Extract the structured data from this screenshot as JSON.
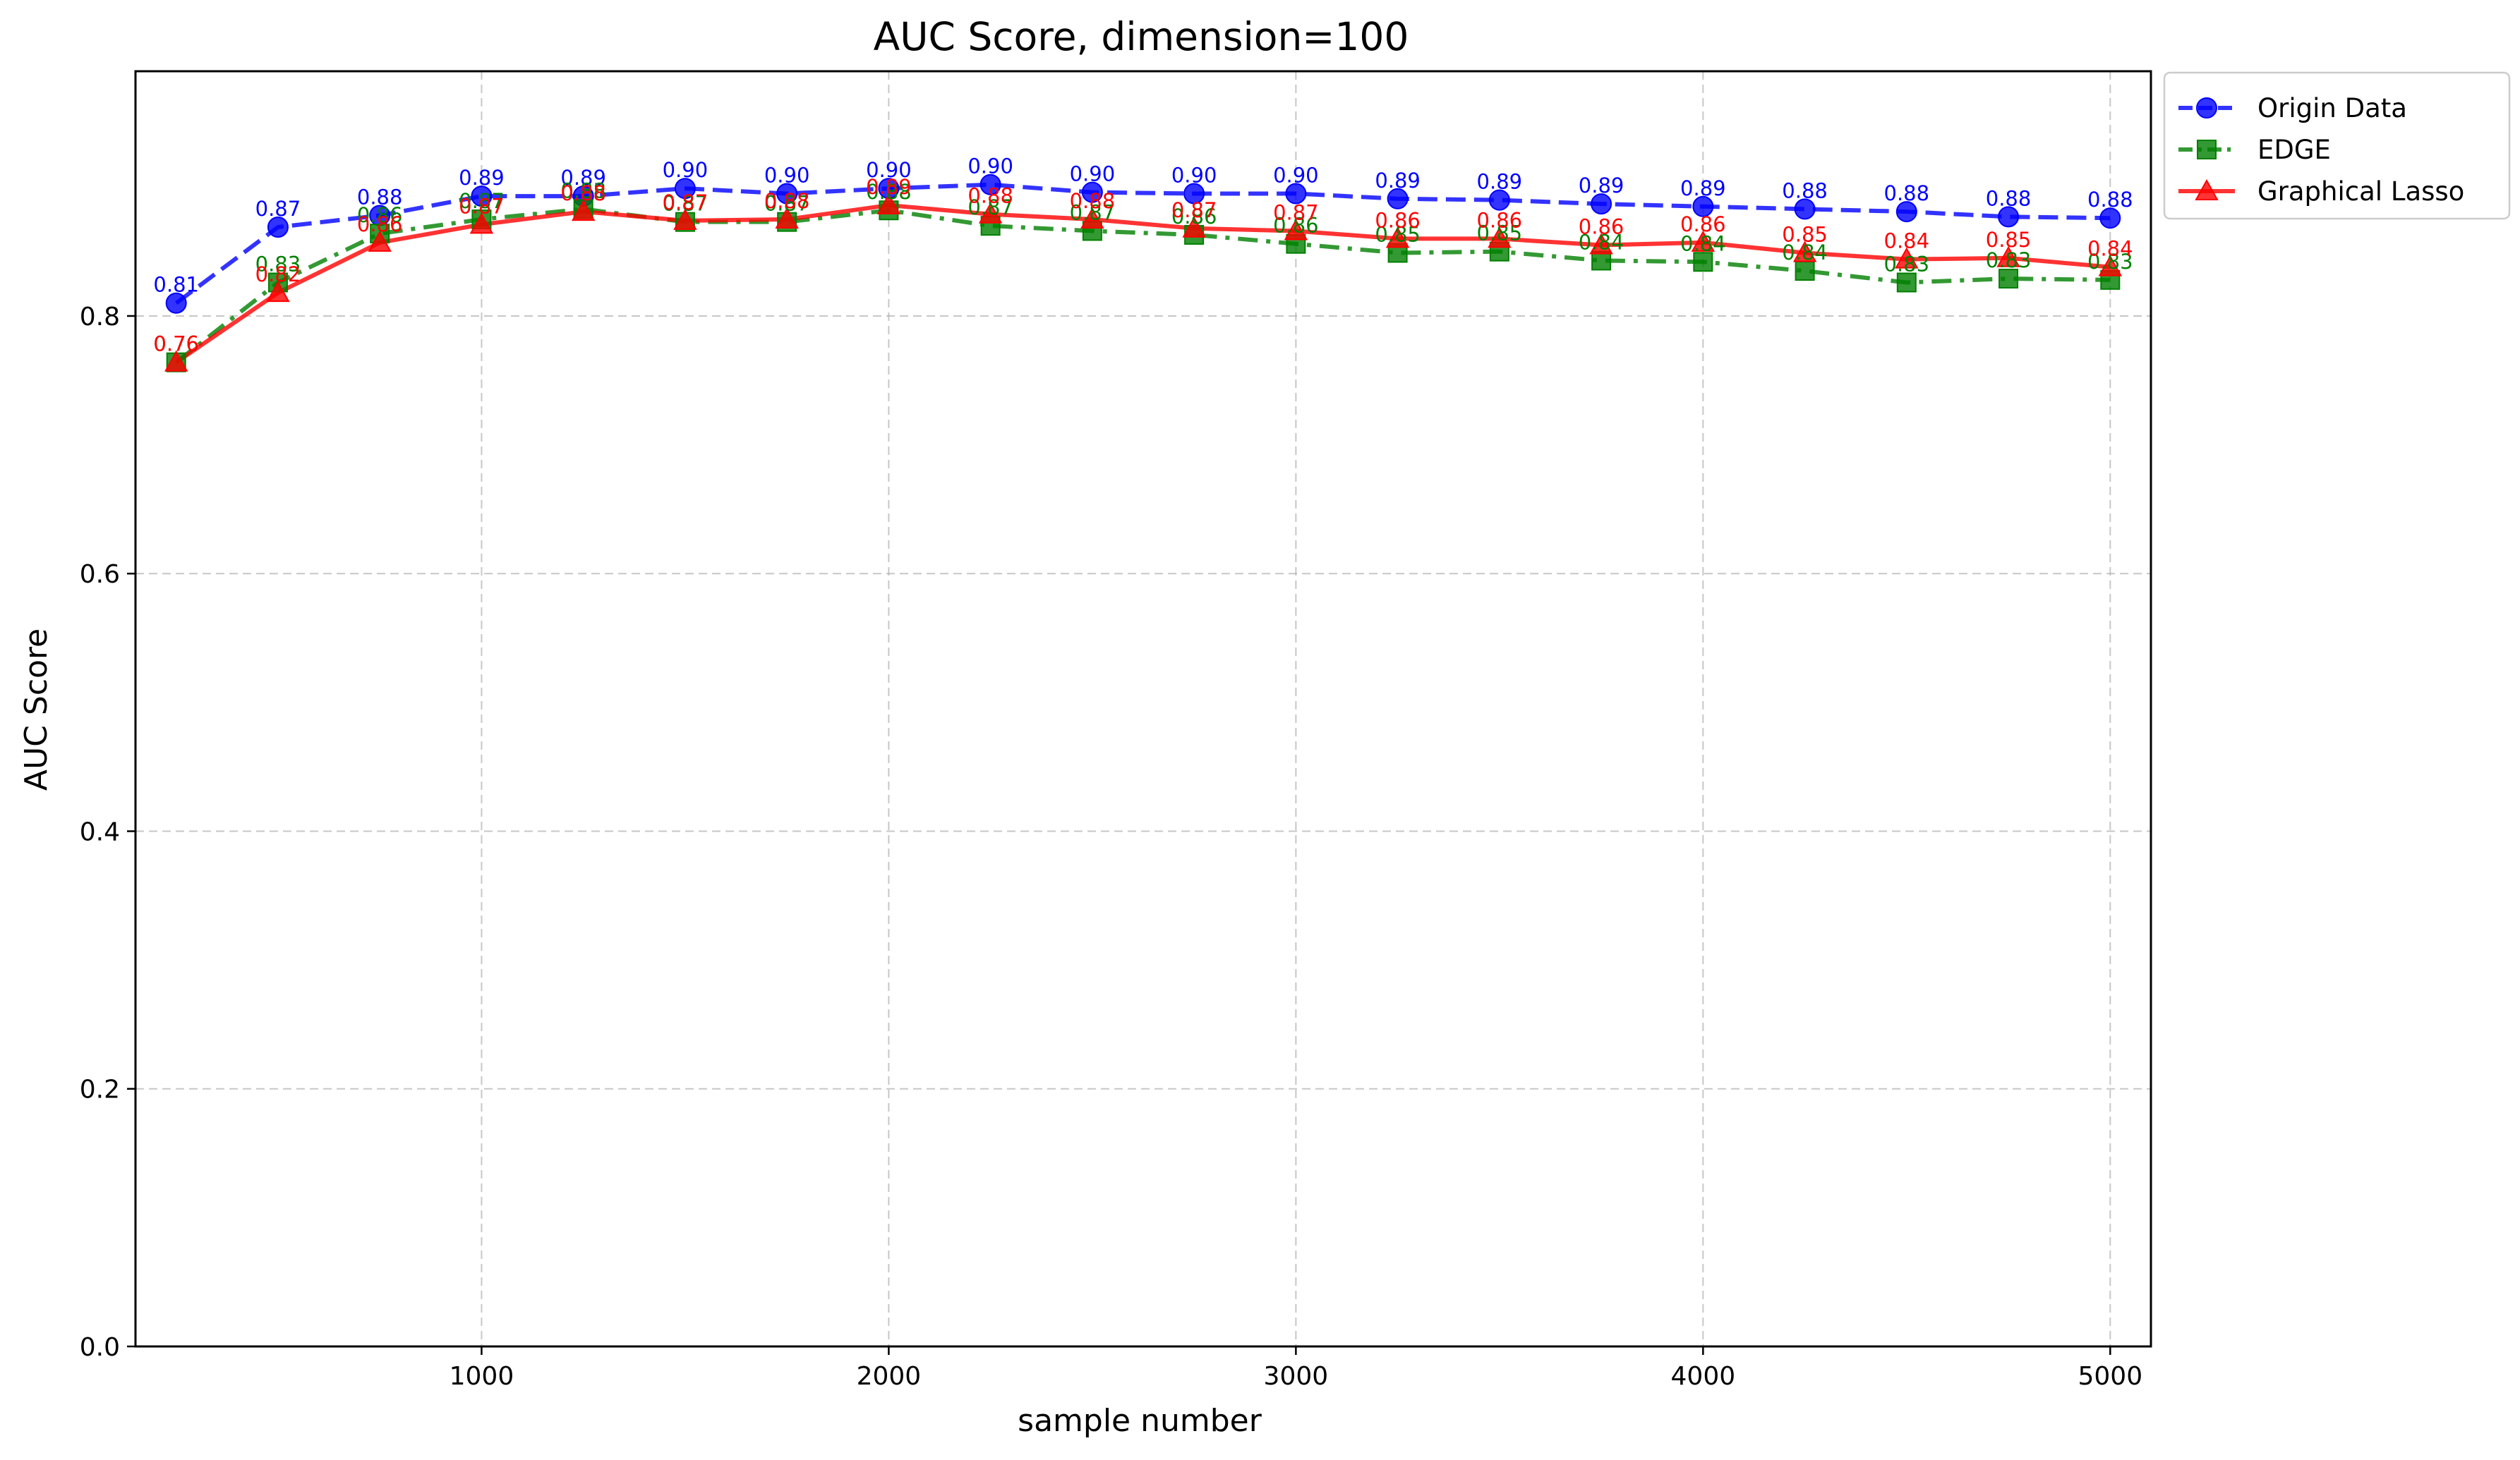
{
  "chart_data": {
    "type": "line",
    "title": "AUC Score, dimension=100",
    "xlabel": "sample number",
    "ylabel": "AUC Score",
    "xlim": [
      150,
      5100
    ],
    "ylim": [
      0,
      0.99
    ],
    "xticks": [
      1000,
      2000,
      3000,
      4000,
      5000
    ],
    "yticks": [
      0.0,
      0.2,
      0.4,
      0.6,
      0.8
    ],
    "xtick_labels": [
      "1000",
      "2000",
      "3000",
      "4000",
      "5000"
    ],
    "ytick_labels": [
      "0.0",
      "0.2",
      "0.4",
      "0.6",
      "0.8"
    ],
    "grid": true,
    "legend_position": "outside-top-right",
    "x": [
      250,
      500,
      750,
      1000,
      1250,
      1500,
      1750,
      2000,
      2250,
      2500,
      2750,
      3000,
      3250,
      3500,
      3750,
      4000,
      4250,
      4500,
      4750,
      5000
    ],
    "series": [
      {
        "name": "Origin Data",
        "color": "#0000ff",
        "line_style": "dashed",
        "marker": "circle",
        "values": [
          0.81,
          0.869,
          0.878,
          0.893,
          0.893,
          0.899,
          0.895,
          0.899,
          0.902,
          0.896,
          0.895,
          0.895,
          0.891,
          0.89,
          0.887,
          0.885,
          0.883,
          0.881,
          0.877,
          0.876
        ],
        "labels": [
          "0.81",
          "0.87",
          "0.88",
          "0.89",
          "0.89",
          "0.90",
          "0.90",
          "0.90",
          "0.90",
          "0.90",
          "0.90",
          "0.90",
          "0.89",
          "0.89",
          "0.89",
          "0.89",
          "0.88",
          "0.88",
          "0.88",
          "0.88"
        ]
      },
      {
        "name": "EDGE",
        "color": "#008000",
        "line_style": "dashdot",
        "marker": "square",
        "values": [
          0.764,
          0.826,
          0.864,
          0.875,
          0.883,
          0.873,
          0.873,
          0.882,
          0.87,
          0.866,
          0.863,
          0.856,
          0.849,
          0.85,
          0.843,
          0.842,
          0.835,
          0.826,
          0.829,
          0.828
        ],
        "labels": [
          "0.76",
          "0.83",
          "0.86",
          "0.87",
          "0.88",
          "0.87",
          "0.87",
          "0.88",
          "0.87",
          "0.87",
          "0.86",
          "0.86",
          "0.85",
          "0.85",
          "0.84",
          "0.84",
          "0.84",
          "0.83",
          "0.83",
          "0.83"
        ]
      },
      {
        "name": "Graphical Lasso",
        "color": "#ff0000",
        "line_style": "solid",
        "marker": "triangle",
        "values": [
          0.764,
          0.818,
          0.857,
          0.871,
          0.881,
          0.874,
          0.875,
          0.886,
          0.879,
          0.875,
          0.868,
          0.866,
          0.86,
          0.86,
          0.855,
          0.857,
          0.849,
          0.844,
          0.845,
          0.838
        ],
        "labels": [
          "0.76",
          "0.82",
          "0.86",
          "0.87",
          "0.88",
          "0.87",
          "0.88",
          "0.89",
          "0.88",
          "0.88",
          "0.87",
          "0.87",
          "0.86",
          "0.86",
          "0.86",
          "0.86",
          "0.85",
          "0.84",
          "0.85",
          "0.84"
        ]
      }
    ]
  }
}
